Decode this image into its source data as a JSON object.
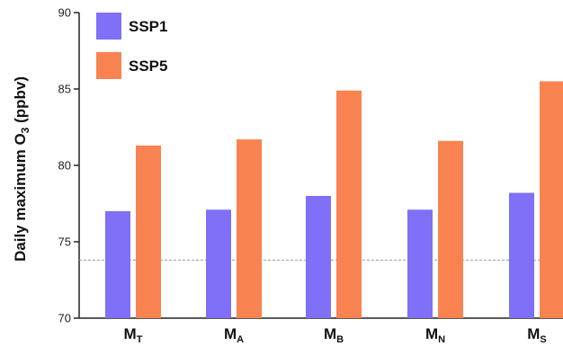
{
  "chart_data": {
    "type": "bar",
    "categories": [
      {
        "main": "M",
        "sub": "T"
      },
      {
        "main": "M",
        "sub": "A"
      },
      {
        "main": "M",
        "sub": "B"
      },
      {
        "main": "M",
        "sub": "N"
      },
      {
        "main": "M",
        "sub": "S"
      }
    ],
    "series": [
      {
        "name": "SSP1",
        "color": "#8070f7",
        "values": [
          77.0,
          77.1,
          78.0,
          77.1,
          78.2
        ]
      },
      {
        "name": "SSP5",
        "color": "#f98350",
        "values": [
          81.3,
          81.7,
          84.9,
          81.6,
          85.5
        ]
      }
    ],
    "ylabel": {
      "main": "Daily maximum O",
      "sub": "3",
      "unit": " (ppbv)"
    },
    "ylim": [
      70,
      90
    ],
    "yticks": [
      70,
      75,
      80,
      85,
      90
    ],
    "reference_line": {
      "value": 73.8,
      "style": "dashed",
      "color": "#999999"
    },
    "legend": "top-left",
    "grid": false
  }
}
